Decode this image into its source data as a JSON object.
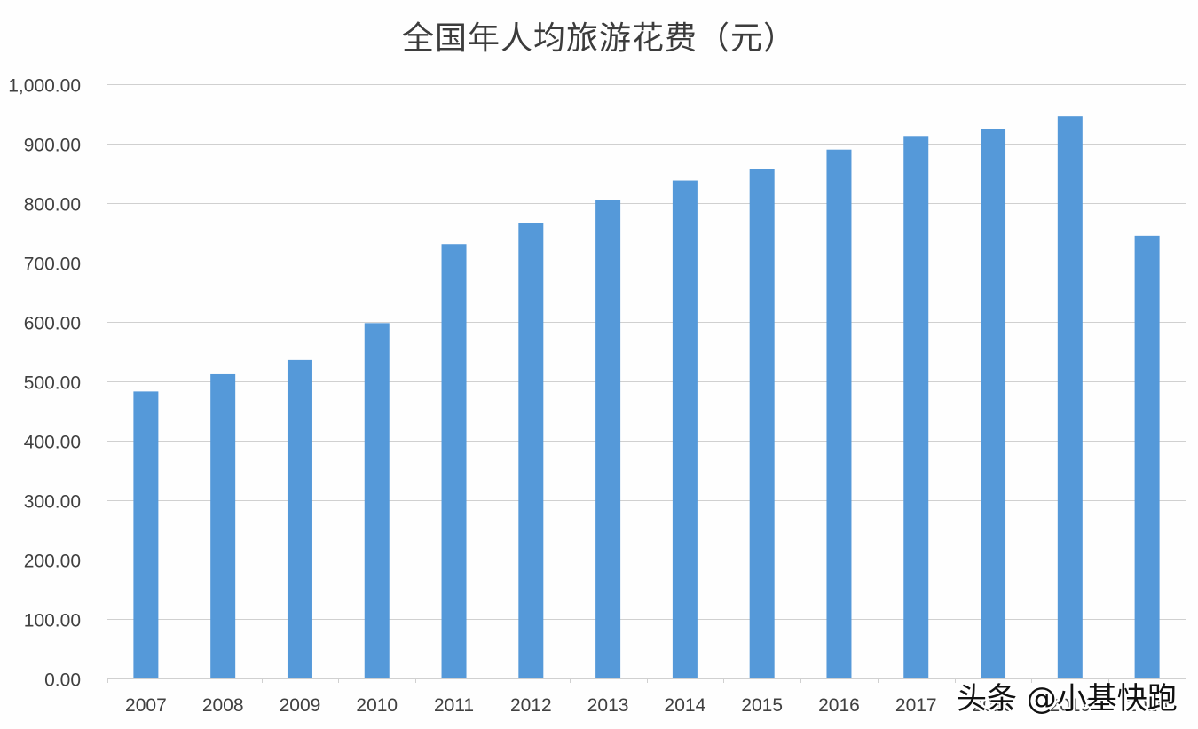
{
  "chart_data": {
    "type": "bar",
    "title": "全国年人均旅游花费（元）",
    "xlabel": "",
    "ylabel": "",
    "categories": [
      "2007",
      "2008",
      "2009",
      "2010",
      "2011",
      "2012",
      "2013",
      "2014",
      "2015",
      "2016",
      "2017",
      "2018",
      "2019",
      "2020"
    ],
    "series": [
      {
        "name": "全国年人均旅游花费",
        "values": [
          483,
          512,
          536,
          598,
          731,
          767,
          805,
          838,
          857,
          890,
          913,
          925,
          946,
          745
        ],
        "color": "#5599d9"
      }
    ],
    "ylim": [
      0,
      1000
    ],
    "yticks": [
      0,
      100,
      200,
      300,
      400,
      500,
      600,
      700,
      800,
      900,
      1000
    ],
    "ytick_labels": [
      "0.00",
      "100.00",
      "200.00",
      "300.00",
      "400.00",
      "500.00",
      "600.00",
      "700.00",
      "800.00",
      "900.00",
      "1,000.00"
    ],
    "grid": true,
    "legend": "none"
  },
  "colors": {
    "bar": "#5599d9",
    "grid": "#d0d0d0",
    "axis_text": "#404040"
  },
  "watermark": "头条 @小基快跑"
}
